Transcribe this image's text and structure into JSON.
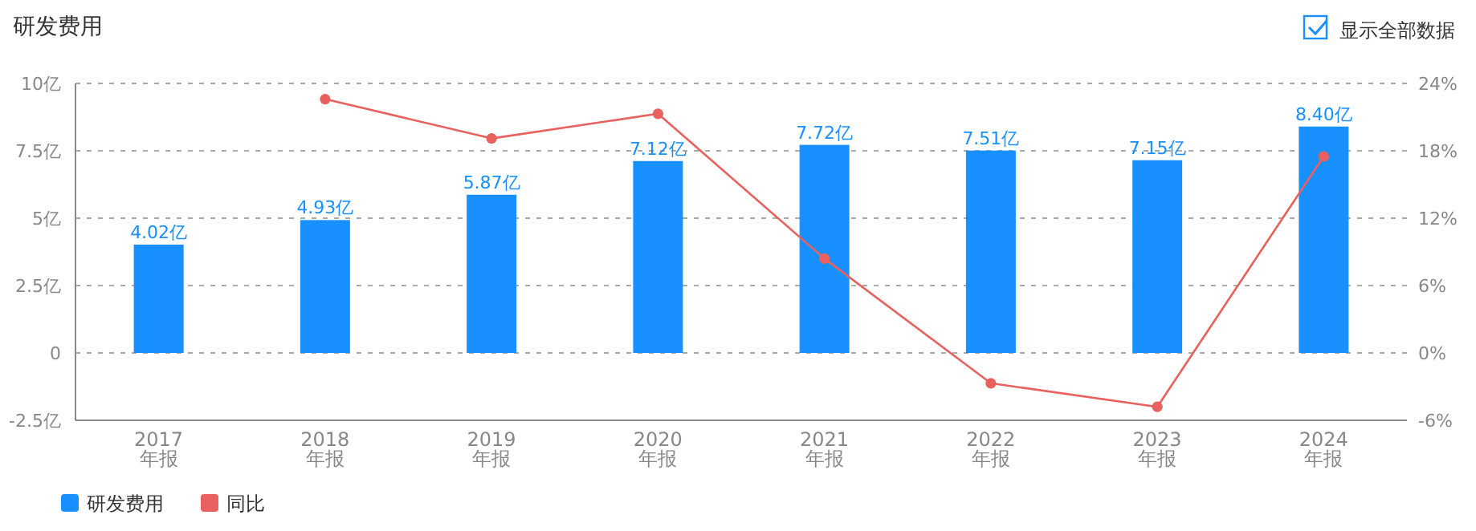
{
  "chart_data": {
    "type": "bar",
    "title": "研发费用",
    "annotations": [
      "显示全部数据"
    ],
    "categories": [
      "2017\n年报",
      "2018\n年报",
      "2019\n年报",
      "2020\n年报",
      "2021\n年报",
      "2022\n年报",
      "2023\n年报",
      "2024\n年报"
    ],
    "series": [
      {
        "name": "研发费用",
        "color": "#1890ff",
        "values": [
          4.02,
          4.93,
          5.87,
          7.12,
          7.72,
          7.51,
          7.15,
          8.4
        ],
        "value_labels": [
          "4.02亿",
          "4.93亿",
          "5.87亿",
          "7.12亿",
          "7.72亿",
          "7.51亿",
          "7.15亿",
          "8.40亿"
        ]
      },
      {
        "name": "同比",
        "type": "line",
        "axis": "y2",
        "color": "#e8615e",
        "marker": "circle",
        "values": [
          null,
          22.6,
          19.1,
          21.3,
          8.4,
          -2.7,
          -4.8,
          17.5
        ]
      }
    ],
    "ylim": [
      -2.5,
      10
    ],
    "yticks": [
      {
        "value": -2.5,
        "label": "-2.5亿"
      },
      0,
      {
        "value": 2.5,
        "label": "2.5亿"
      },
      {
        "value": 5,
        "label": "5亿"
      },
      {
        "value": 7.5,
        "label": "7.5亿"
      },
      {
        "value": 10,
        "label": "10亿"
      }
    ],
    "y2lim": [
      -6,
      24
    ],
    "y2ticks": [
      {
        "value": -6,
        "label": "-6%"
      },
      {
        "value": 0,
        "label": "0%"
      },
      {
        "value": 6,
        "label": "6%"
      },
      {
        "value": 12,
        "label": "12%"
      },
      {
        "value": 18,
        "label": "18%"
      },
      {
        "value": 24,
        "label": "24%"
      }
    ],
    "grid": "y",
    "legend": "bottom left"
  }
}
